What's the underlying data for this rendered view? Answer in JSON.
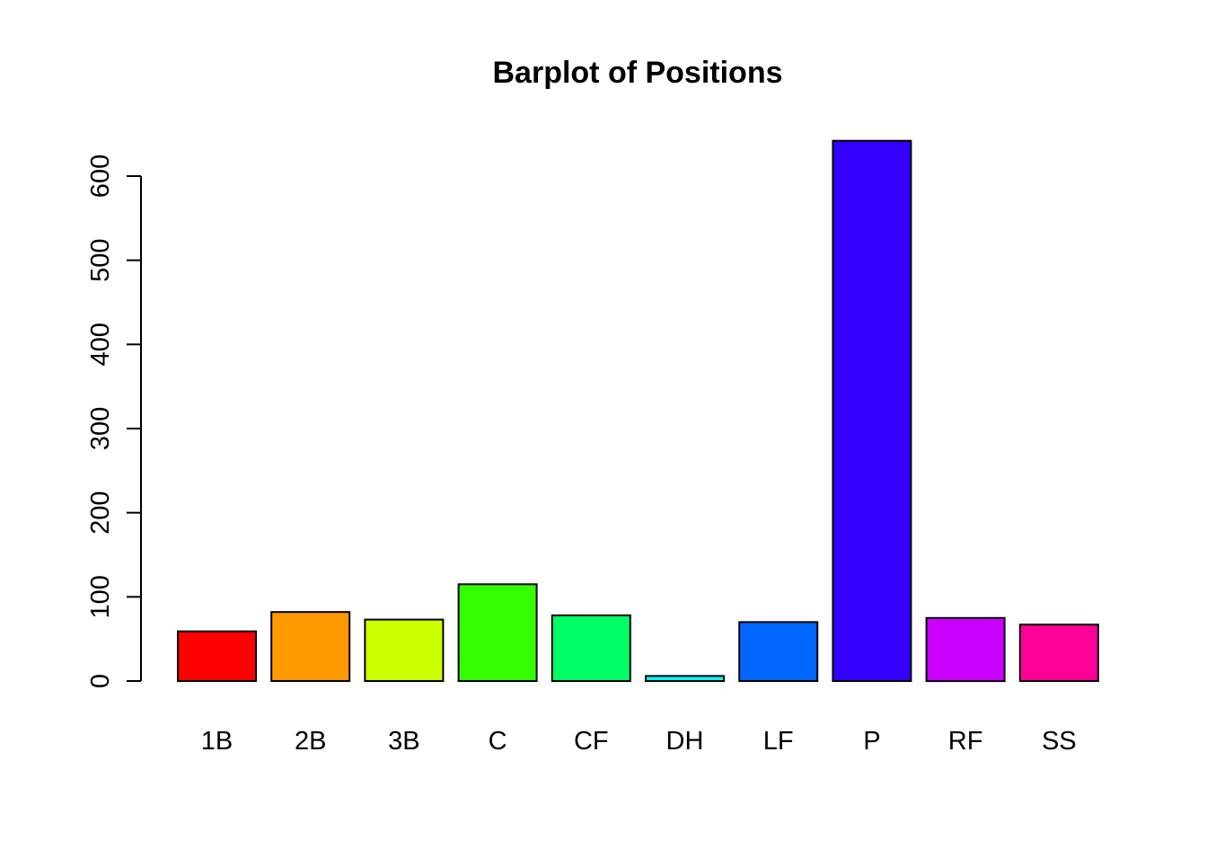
{
  "chart_data": {
    "type": "bar",
    "title": "Barplot of Positions",
    "xlabel": "",
    "ylabel": "",
    "categories": [
      "1B",
      "2B",
      "3B",
      "C",
      "CF",
      "DH",
      "LF",
      "P",
      "RF",
      "SS"
    ],
    "values": [
      59,
      82,
      73,
      115,
      78,
      6,
      70,
      642,
      75,
      67
    ],
    "colors": [
      "#FF0000",
      "#FF9900",
      "#CCFF00",
      "#33FF00",
      "#00FF66",
      "#00FFFF",
      "#0066FF",
      "#3300FF",
      "#CC00FF",
      "#FF0099"
    ],
    "yticks": [
      0,
      100,
      200,
      300,
      400,
      500,
      600
    ],
    "ytick_labels": [
      "0",
      "100",
      "200",
      "300",
      "400",
      "500",
      "600"
    ],
    "ylim": [
      0,
      642
    ],
    "grid": false,
    "legend": "none"
  }
}
